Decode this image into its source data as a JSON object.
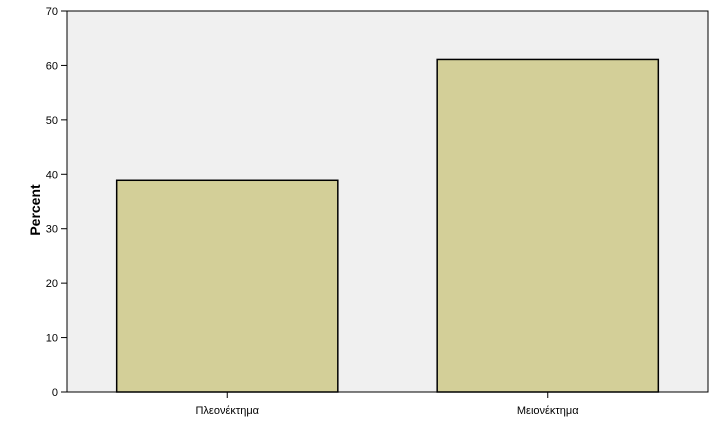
{
  "chart_data": {
    "type": "bar",
    "categories": [
      "Πλεονέκτημα",
      "Μειονέκτημα"
    ],
    "values": [
      38.9,
      61.1
    ],
    "xlabel": "",
    "ylabel": "Percent",
    "ylim": [
      0,
      70
    ],
    "yticks": [
      0,
      10,
      20,
      30,
      40,
      50,
      60,
      70
    ],
    "grid": false,
    "colors": {
      "bar_fill": "#d3cf98",
      "bar_stroke": "#000000",
      "plot_background": "#f0f0f0"
    }
  }
}
